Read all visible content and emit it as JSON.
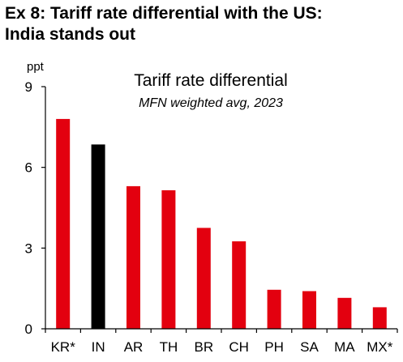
{
  "exhibit": {
    "title_line1": "Ex 8: Tariff rate differential with the US:",
    "title_line2": "India stands out"
  },
  "colors": {
    "default_bar": "#e3000f",
    "highlight_bar": "#000000",
    "axis": "#000000"
  },
  "chart_data": {
    "type": "bar",
    "title": "Tariff rate differential",
    "subtitle": "MFN weighted avg, 2023",
    "ylabel": "ppt",
    "xlabel": "",
    "ylim": [
      0,
      9
    ],
    "yticks": [
      0,
      3,
      6,
      9
    ],
    "grid": false,
    "legend": "none",
    "categories": [
      "KR*",
      "IN",
      "AR",
      "TH",
      "BR",
      "CH",
      "PH",
      "SA",
      "MA",
      "MX*"
    ],
    "values": [
      7.8,
      6.85,
      5.3,
      5.15,
      3.75,
      3.25,
      1.45,
      1.4,
      1.15,
      0.8
    ],
    "highlight": [
      "IN"
    ]
  }
}
